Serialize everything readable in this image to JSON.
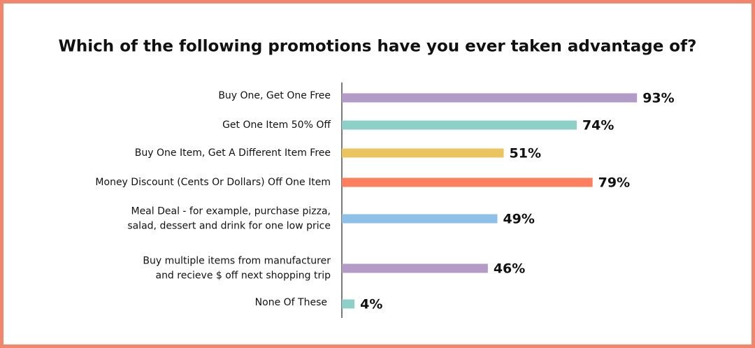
{
  "chart_data": {
    "type": "bar",
    "orientation": "horizontal",
    "title": "Which of the following promotions have you ever taken advantage of?",
    "categories": [
      "Buy One, Get One Free",
      "Get One Item 50% Off",
      "Buy One Item, Get A Different Item Free",
      "Money Discount (Cents Or Dollars) Off One Item",
      "Meal Deal - for example, purchase pizza,\nsalad, dessert and drink for one low price",
      "Buy multiple items from manufacturer\nand recieve $ off next shopping trip",
      "None Of These"
    ],
    "values": [
      93,
      74,
      51,
      79,
      49,
      46,
      4
    ],
    "value_labels": [
      "93%",
      "74%",
      "51%",
      "79%",
      "49%",
      "46%",
      "4%"
    ],
    "colors": [
      "#b39bc8",
      "#8ecfc8",
      "#ebc45f",
      "#fd7f5f",
      "#8ec0e8",
      "#b39bc8",
      "#8ecfc8"
    ],
    "xlim": [
      0,
      100
    ]
  }
}
